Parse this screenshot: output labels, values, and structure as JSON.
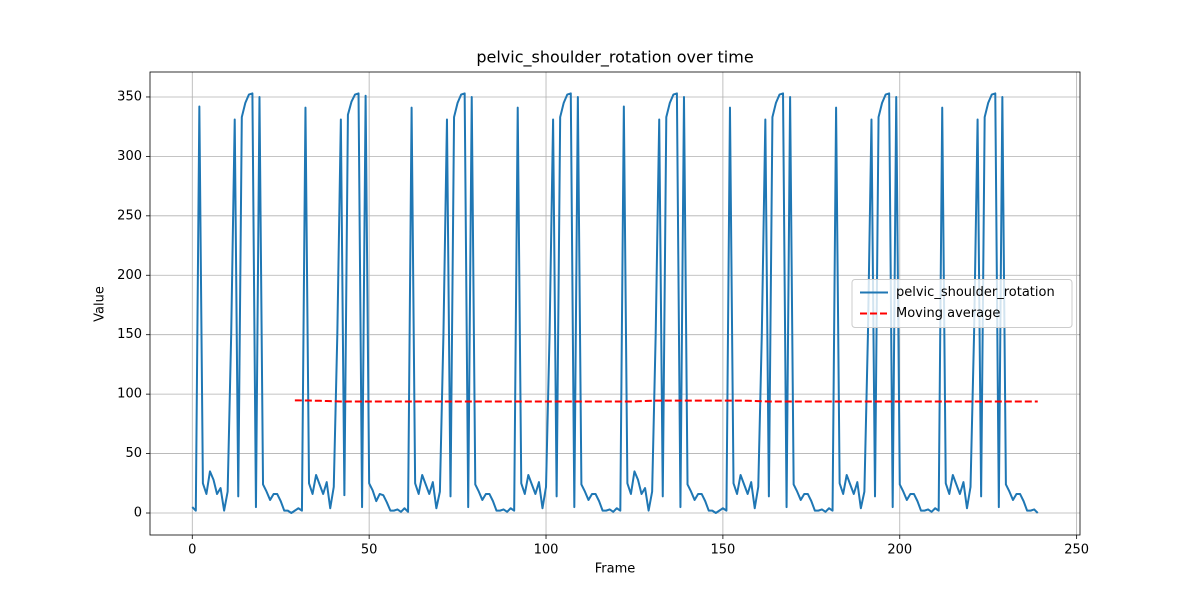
{
  "chart_data": {
    "type": "line",
    "title": "pelvic_shoulder_rotation over time",
    "x_label": "Frame",
    "y_label": "Value",
    "x": [
      0,
      1,
      2,
      3,
      4,
      5,
      6,
      7,
      8,
      9,
      10,
      11,
      12,
      13,
      14,
      15,
      16,
      17,
      18,
      19,
      20,
      21,
      22,
      23,
      24,
      25,
      26,
      27,
      28,
      29,
      30,
      31,
      32,
      33,
      34,
      35,
      36,
      37,
      38,
      39,
      40,
      41,
      42,
      43,
      44,
      45,
      46,
      47,
      48,
      49,
      50,
      51,
      52,
      53,
      54,
      55,
      56,
      57,
      58,
      59,
      60,
      61,
      62,
      63,
      64,
      65,
      66,
      67,
      68,
      69,
      70,
      71,
      72,
      73,
      74,
      75,
      76,
      77,
      78,
      79,
      80,
      81,
      82,
      83,
      84,
      85,
      86,
      87,
      88,
      89,
      90,
      91,
      92,
      93,
      94,
      95,
      96,
      97,
      98,
      99,
      100,
      101,
      102,
      103,
      104,
      105,
      106,
      107,
      108,
      109,
      110,
      111,
      112,
      113,
      114,
      115,
      116,
      117,
      118,
      119,
      120,
      121,
      122,
      123,
      124,
      125,
      126,
      127,
      128,
      129,
      130,
      131,
      132,
      133,
      134,
      135,
      136,
      137,
      138,
      139,
      140,
      141,
      142,
      143,
      144,
      145,
      146,
      147,
      148,
      149,
      150,
      151,
      152,
      153,
      154,
      155,
      156,
      157,
      158,
      159,
      160,
      161,
      162,
      163,
      164,
      165,
      166,
      167,
      168,
      169,
      170,
      171,
      172,
      173,
      174,
      175,
      176,
      177,
      178,
      179,
      180,
      181,
      182,
      183,
      184,
      185,
      186,
      187,
      188,
      189,
      190,
      191,
      192,
      193,
      194,
      195,
      196,
      197,
      198,
      199,
      200,
      201,
      202,
      203,
      204,
      205,
      206,
      207,
      208,
      209,
      210,
      211,
      212,
      213,
      214,
      215,
      216,
      217,
      218,
      219,
      220,
      221,
      222,
      223,
      224,
      225,
      226,
      227,
      228,
      229,
      230,
      231,
      232,
      233,
      234,
      235,
      236,
      237,
      238,
      239
    ],
    "series": [
      {
        "name": "pelvic_shoulder_rotation",
        "color": "#1f77b4",
        "dash": false,
        "values": [
          5,
          2,
          342,
          25,
          16,
          35,
          28,
          16,
          21,
          2,
          18,
          150,
          331,
          14,
          333,
          345,
          352,
          353,
          5,
          350,
          24,
          18,
          11,
          16,
          16,
          10,
          2,
          2,
          0,
          2,
          4,
          2,
          341,
          25,
          16,
          32,
          24,
          16,
          26,
          4,
          22,
          150,
          331,
          15,
          335,
          346,
          352,
          353,
          5,
          351,
          25,
          19,
          10,
          16,
          15,
          9,
          2,
          2,
          3,
          1,
          4,
          1,
          341,
          25,
          16,
          32,
          24,
          16,
          26,
          4,
          18,
          150,
          331,
          14,
          333,
          345,
          352,
          353,
          5,
          350,
          24,
          18,
          11,
          16,
          16,
          10,
          2,
          2,
          3,
          1,
          4,
          2,
          341,
          25,
          16,
          32,
          24,
          16,
          26,
          4,
          22,
          150,
          331,
          14,
          333,
          345,
          352,
          353,
          5,
          350,
          24,
          18,
          11,
          16,
          16,
          10,
          2,
          2,
          3,
          1,
          4,
          2,
          342,
          25,
          16,
          35,
          28,
          16,
          21,
          2,
          18,
          150,
          331,
          14,
          333,
          345,
          352,
          353,
          5,
          350,
          24,
          18,
          11,
          16,
          16,
          10,
          2,
          2,
          0,
          2,
          4,
          2,
          341,
          25,
          16,
          32,
          24,
          16,
          26,
          4,
          22,
          150,
          331,
          14,
          333,
          345,
          352,
          353,
          5,
          350,
          24,
          18,
          11,
          16,
          16,
          10,
          2,
          2,
          3,
          1,
          4,
          2,
          341,
          25,
          16,
          32,
          24,
          16,
          26,
          4,
          18,
          150,
          331,
          14,
          333,
          345,
          352,
          353,
          5,
          350,
          24,
          18,
          11,
          16,
          16,
          10,
          2,
          2,
          3,
          1,
          4,
          2,
          341,
          25,
          16,
          32,
          24,
          16,
          26,
          4,
          22,
          150,
          331,
          14,
          333,
          345,
          352,
          353,
          5,
          350,
          24,
          18,
          11,
          16,
          16,
          10,
          2,
          2,
          3,
          0
        ]
      },
      {
        "name": "Moving average",
        "color": "#ff0000",
        "dash": true,
        "values": [
          null,
          null,
          null,
          null,
          null,
          null,
          null,
          null,
          null,
          null,
          null,
          null,
          null,
          null,
          null,
          null,
          null,
          null,
          null,
          null,
          null,
          null,
          null,
          null,
          null,
          null,
          null,
          null,
          null,
          94.8,
          94.8,
          94.7,
          94.7,
          94.6,
          94.5,
          94.4,
          94.4,
          94.3,
          94.2,
          94.1,
          94,
          93.9,
          93.8,
          93.8,
          93.8,
          93.8,
          93.8,
          93.8,
          93.8,
          93.8,
          93.8,
          93.8,
          93.8,
          93.8,
          93.8,
          93.8,
          93.8,
          93.8,
          93.8,
          93.8,
          93.8,
          93.8,
          93.8,
          93.8,
          93.8,
          93.8,
          93.8,
          93.8,
          93.8,
          93.8,
          93.8,
          93.8,
          93.8,
          93.8,
          93.8,
          93.8,
          93.8,
          93.8,
          93.8,
          93.8,
          93.8,
          93.8,
          93.8,
          93.8,
          93.8,
          93.8,
          93.8,
          93.8,
          93.8,
          93.8,
          93.8,
          93.8,
          93.8,
          93.8,
          93.8,
          93.8,
          93.8,
          93.8,
          93.8,
          93.8,
          93.8,
          93.8,
          93.8,
          93.8,
          93.8,
          93.8,
          93.8,
          93.8,
          93.8,
          93.8,
          93.8,
          93.8,
          93.8,
          93.8,
          93.8,
          93.8,
          93.8,
          93.8,
          93.8,
          93.8,
          93.8,
          93.8,
          93.8,
          93.8,
          93.8,
          93.8,
          94,
          94.1,
          94.2,
          94.3,
          94.4,
          94.5,
          94.5,
          94.5,
          94.5,
          94.5,
          94.5,
          94.5,
          94.5,
          94.5,
          94.5,
          94.5,
          94.5,
          94.5,
          94.5,
          94.5,
          94.5,
          94.5,
          94.5,
          94.5,
          94.5,
          94.5,
          94.5,
          94.5,
          94.5,
          94.5,
          94.5,
          94.4,
          94.3,
          94.2,
          94.1,
          94,
          93.9,
          93.8,
          93.8,
          93.8,
          93.8,
          93.8,
          93.8,
          93.8,
          93.8,
          93.8,
          93.8,
          93.8,
          93.8,
          93.8,
          93.8,
          93.8,
          93.8,
          93.8,
          93.8,
          93.8,
          93.8,
          93.8,
          93.8,
          93.8,
          93.8,
          93.8,
          93.8,
          93.8,
          93.8,
          93.8,
          93.8,
          93.8,
          93.8,
          93.8,
          93.8,
          93.8,
          93.8,
          93.8,
          93.8,
          93.8,
          93.8,
          93.8,
          93.8,
          93.8,
          93.8,
          93.8,
          93.8,
          93.8,
          93.8,
          93.8,
          93.8,
          93.8,
          93.8,
          93.8,
          93.8,
          93.8,
          93.8,
          93.8,
          93.8,
          93.8,
          93.8,
          93.8,
          93.8,
          93.8,
          93.8,
          93.8,
          93.8,
          93.8,
          93.8,
          93.8,
          93.8,
          93.8,
          93.8,
          93.8,
          93.8,
          93.8,
          93.8,
          93.8
        ]
      }
    ],
    "xlim": [
      -11.95,
      250.95
    ],
    "ylim": [
      -18.5,
      371
    ],
    "xticks": [
      0,
      50,
      100,
      150,
      200,
      250
    ],
    "yticks": [
      0,
      50,
      100,
      150,
      200,
      250,
      300,
      350
    ],
    "grid": true,
    "legend_position": "center right"
  }
}
